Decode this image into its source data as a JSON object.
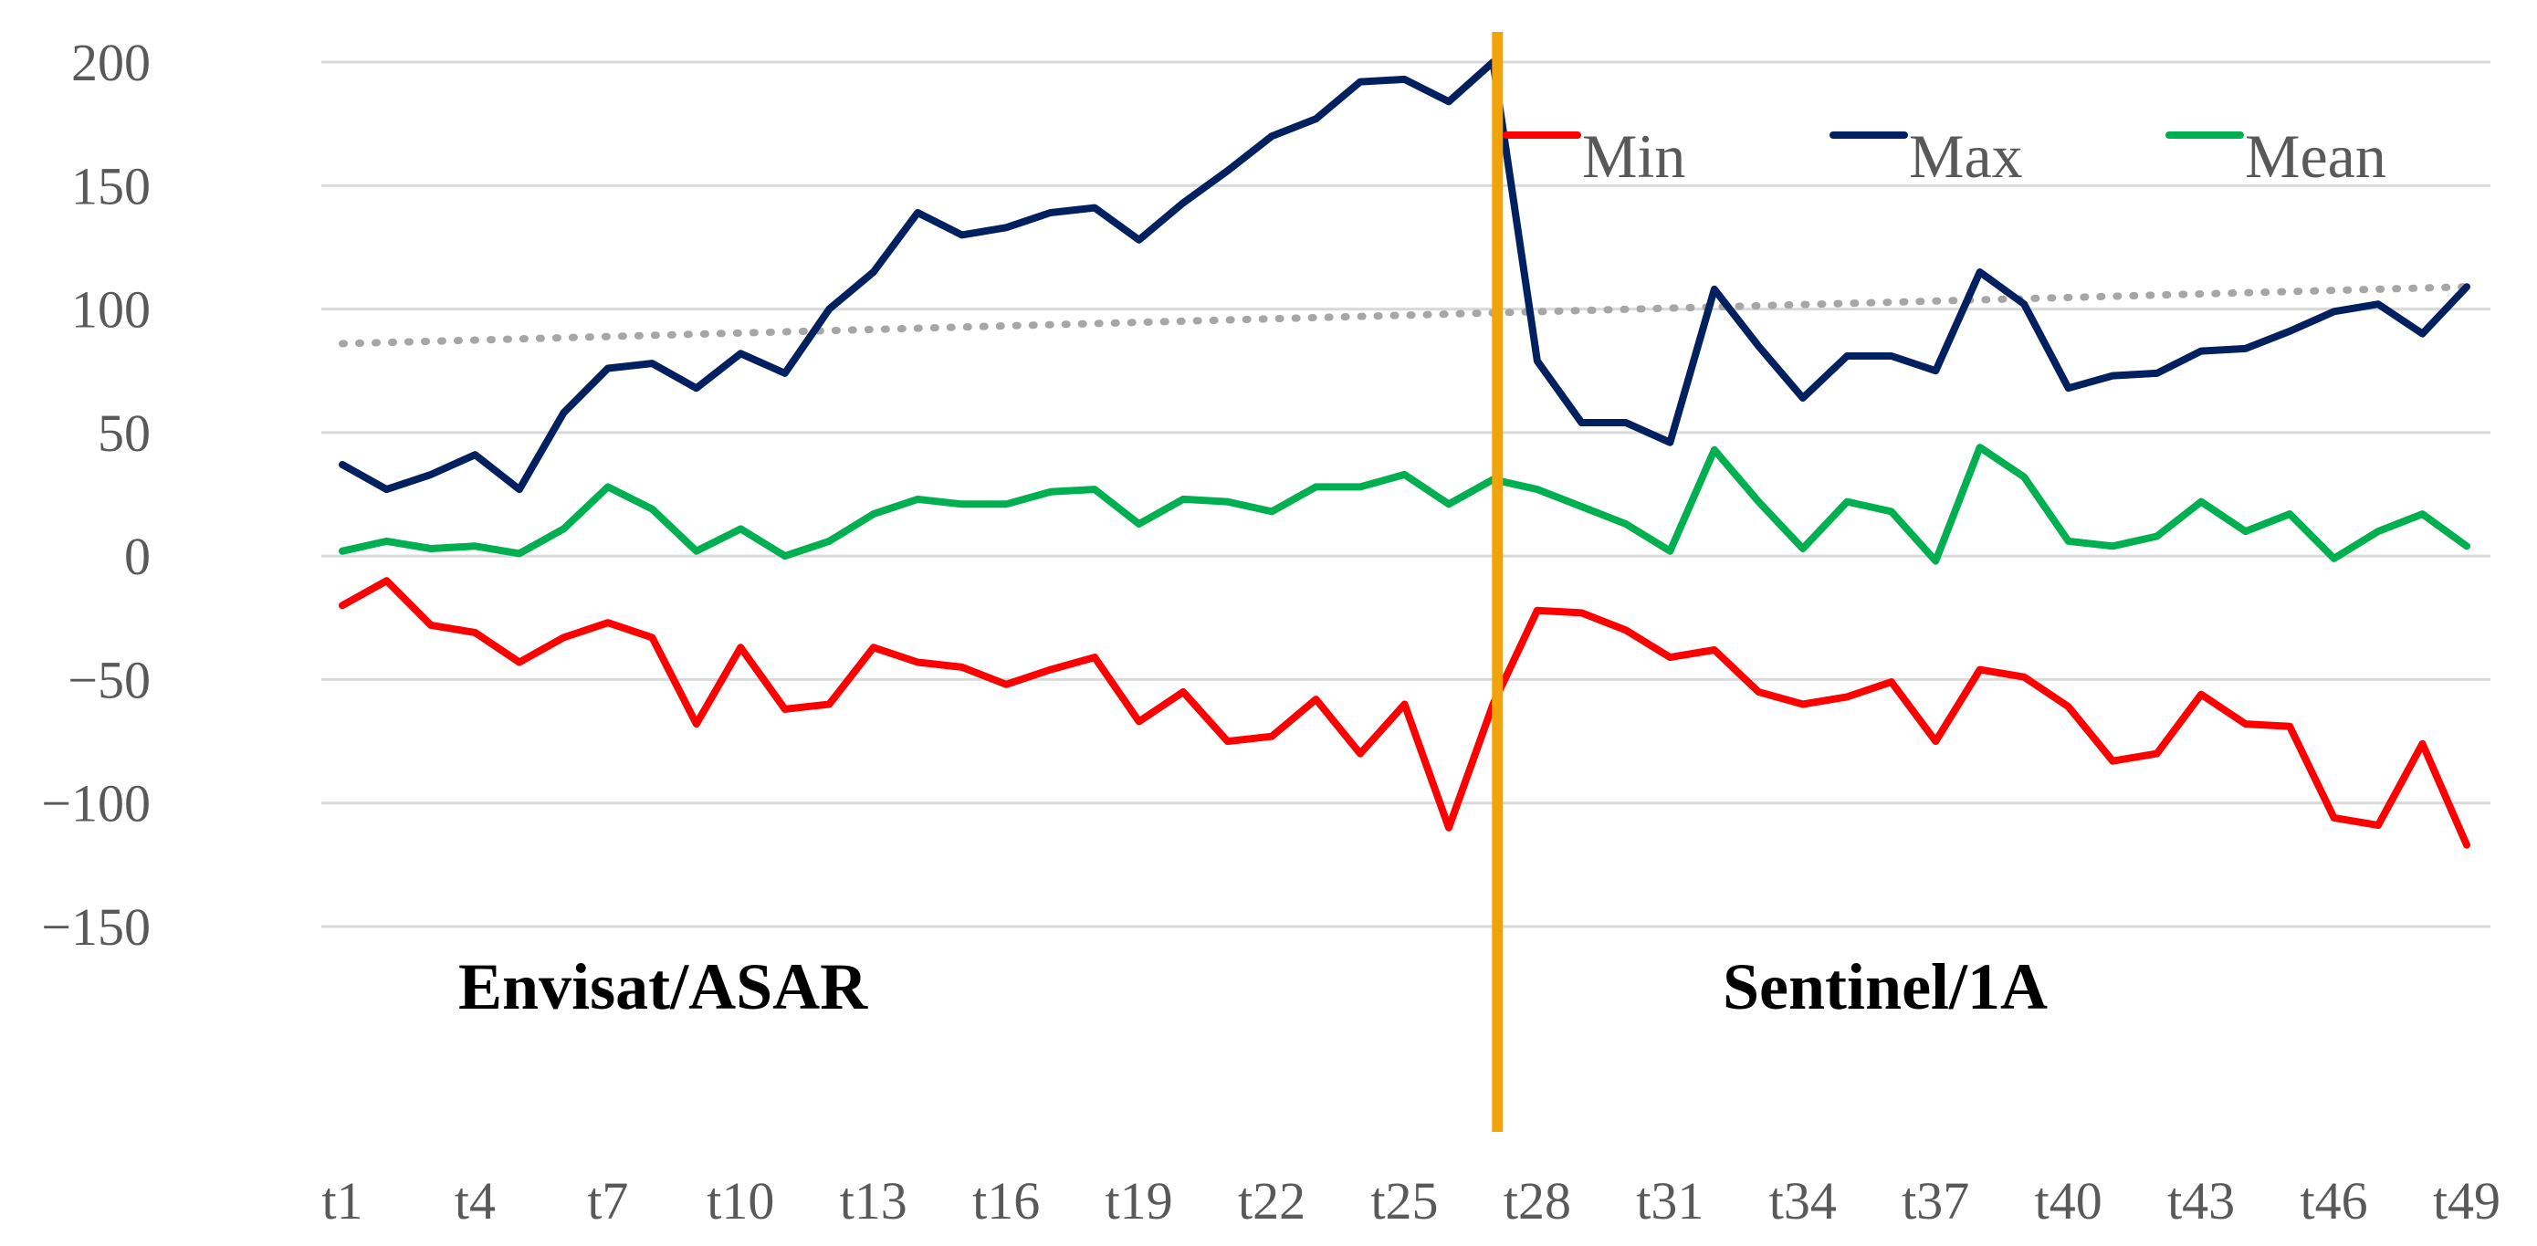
{
  "chart_data": {
    "type": "line",
    "title": "",
    "xlabel": "",
    "ylabel": "",
    "ylim": [
      -150,
      200
    ],
    "yticks": [
      200,
      150,
      100,
      50,
      0,
      -50,
      -100,
      -150
    ],
    "x": [
      "t1",
      "t2",
      "t3",
      "t4",
      "t5",
      "t6",
      "t7",
      "t8",
      "t9",
      "t10",
      "t11",
      "t12",
      "t13",
      "t14",
      "t15",
      "t16",
      "t17",
      "t18",
      "t19",
      "t20",
      "t21",
      "t22",
      "t23",
      "t24",
      "t25",
      "t26",
      "t27",
      "t28",
      "t29",
      "t30",
      "t31",
      "t32",
      "t33",
      "t34",
      "t35",
      "t36",
      "t37",
      "t38",
      "t39",
      "t40",
      "t41",
      "t42",
      "t43",
      "t44",
      "t45",
      "t46",
      "t47",
      "t48",
      "t49"
    ],
    "xtick_labels": [
      "t1",
      "t4",
      "t7",
      "t10",
      "t13",
      "t16",
      "t19",
      "t22",
      "t25",
      "t28",
      "t31",
      "t34",
      "t37",
      "t40",
      "t43",
      "t46",
      "t49"
    ],
    "series": [
      {
        "name": "Min",
        "color": "#ff0000",
        "values": [
          -20,
          -10,
          -28,
          -31,
          -43,
          -33,
          -27,
          -33,
          -68,
          -37,
          -62,
          -60,
          -37,
          -43,
          -45,
          -52,
          -46,
          -41,
          -67,
          -55,
          -75,
          -73,
          -58,
          -80,
          -60,
          -110,
          -60,
          -22,
          -23,
          -30,
          -41,
          -38,
          -55,
          -60,
          -57,
          -51,
          -75,
          -46,
          -49,
          -61,
          -83,
          -80,
          -56,
          -68,
          -69,
          -106,
          -109,
          -76,
          -117
        ]
      },
      {
        "name": "Max",
        "color": "#002060",
        "values": [
          37,
          27,
          33,
          41,
          27,
          58,
          76,
          78,
          68,
          82,
          74,
          100,
          115,
          139,
          130,
          133,
          139,
          141,
          128,
          143,
          156,
          170,
          177,
          192,
          193,
          184,
          200,
          79,
          54,
          54,
          46,
          108,
          85,
          64,
          81,
          81,
          75,
          115,
          102,
          68,
          73,
          74,
          83,
          84,
          91,
          99,
          102,
          90,
          109
        ]
      },
      {
        "name": "Mean",
        "color": "#00b050",
        "values": [
          2,
          6,
          3,
          4,
          1,
          11,
          28,
          19,
          2,
          11,
          0,
          6,
          17,
          23,
          21,
          21,
          26,
          27,
          13,
          23,
          22,
          18,
          28,
          28,
          33,
          21,
          31,
          27,
          20,
          13,
          2,
          43,
          22,
          3,
          22,
          18,
          -2,
          44,
          32,
          6,
          4,
          8,
          22,
          10,
          17,
          -1,
          10,
          17,
          4
        ]
      }
    ],
    "trendline": {
      "name": "Max trend",
      "color": "#a6a6a6",
      "from": 86,
      "to": 109
    },
    "divider": {
      "x": "t27.1",
      "color": "#f0a30a"
    },
    "legend": {
      "position": "top-right",
      "entries": [
        "Min",
        "Max",
        "Mean"
      ]
    },
    "annotations": [
      "Envisat/ASAR",
      "Sentinel/1A"
    ],
    "grid": true
  }
}
